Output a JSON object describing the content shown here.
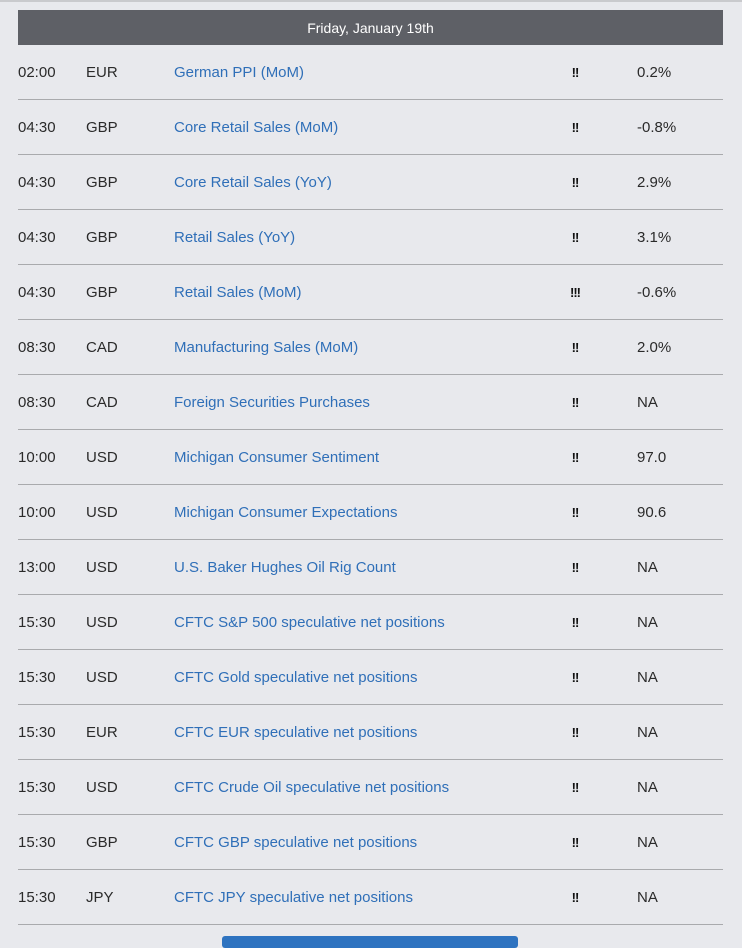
{
  "day_header": "Friday, January 19th",
  "colors": {
    "header_bg": "#5e6066",
    "event_link": "#2f6fb8",
    "page_bg": "#e8e9ed"
  },
  "events": [
    {
      "time": "02:00",
      "currency": "EUR",
      "name": "German PPI (MoM)",
      "importance": "!!",
      "value": "0.2%"
    },
    {
      "time": "04:30",
      "currency": "GBP",
      "name": "Core Retail Sales (MoM)",
      "importance": "!!",
      "value": "-0.8%"
    },
    {
      "time": "04:30",
      "currency": "GBP",
      "name": "Core Retail Sales (YoY)",
      "importance": "!!",
      "value": "2.9%"
    },
    {
      "time": "04:30",
      "currency": "GBP",
      "name": "Retail Sales (YoY)",
      "importance": "!!",
      "value": "3.1%"
    },
    {
      "time": "04:30",
      "currency": "GBP",
      "name": "Retail Sales (MoM)",
      "importance": "!!!",
      "value": "-0.6%"
    },
    {
      "time": "08:30",
      "currency": "CAD",
      "name": "Manufacturing Sales (MoM)",
      "importance": "!!",
      "value": "2.0%"
    },
    {
      "time": "08:30",
      "currency": "CAD",
      "name": "Foreign Securities Purchases",
      "importance": "!!",
      "value": "NA"
    },
    {
      "time": "10:00",
      "currency": "USD",
      "name": "Michigan Consumer Sentiment",
      "importance": "!!",
      "value": "97.0"
    },
    {
      "time": "10:00",
      "currency": "USD",
      "name": "Michigan Consumer Expectations",
      "importance": "!!",
      "value": "90.6"
    },
    {
      "time": "13:00",
      "currency": "USD",
      "name": "U.S. Baker Hughes Oil Rig Count",
      "importance": "!!",
      "value": "NA"
    },
    {
      "time": "15:30",
      "currency": "USD",
      "name": "CFTC S&P 500 speculative net positions",
      "importance": "!!",
      "value": "NA"
    },
    {
      "time": "15:30",
      "currency": "USD",
      "name": "CFTC Gold speculative net positions",
      "importance": "!!",
      "value": "NA"
    },
    {
      "time": "15:30",
      "currency": "EUR",
      "name": "CFTC EUR speculative net positions",
      "importance": "!!",
      "value": "NA"
    },
    {
      "time": "15:30",
      "currency": "USD",
      "name": "CFTC Crude Oil speculative net positions",
      "importance": "!!",
      "value": "NA"
    },
    {
      "time": "15:30",
      "currency": "GBP",
      "name": "CFTC GBP speculative net positions",
      "importance": "!!",
      "value": "NA"
    },
    {
      "time": "15:30",
      "currency": "JPY",
      "name": "CFTC JPY speculative net positions",
      "importance": "!!",
      "value": "NA"
    }
  ]
}
